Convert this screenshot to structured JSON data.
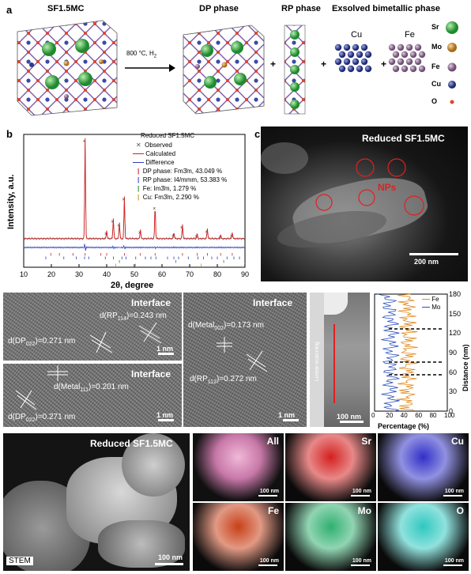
{
  "panel_a": {
    "label": "a",
    "sf_title": "SF1.5MC",
    "arrow_text": "800 °C, H",
    "arrow_sub": "2",
    "dp_title": "DP phase",
    "rp_title": "RP phase",
    "exsolved_title": "Exsolved bimetallic phase",
    "cu_label": "Cu",
    "fe_label": "Fe",
    "plus": "+",
    "legend": [
      {
        "label": "Sr",
        "color": "#39b54a"
      },
      {
        "label": "Mo",
        "color": "#c8882a"
      },
      {
        "label": "Fe",
        "color": "#8b6e8e"
      },
      {
        "label": "Cu",
        "color": "#2e3a8c"
      },
      {
        "label": "O",
        "color": "#e0452b"
      }
    ]
  },
  "panel_b": {
    "label": "b",
    "legend_title": "Reduced SF1.5MC",
    "legend_observed": "Observed",
    "legend_calculated": "Calculated",
    "legend_difference": "Difference",
    "legend_dp": "DP phase: Fm3̄m, 43.049 %",
    "legend_rp": "RP phase: I4/mmm, 53.383 %",
    "legend_fe": "Fe: Im3̄m, 1.279 %",
    "legend_cu": "Cu: Fm3̄m, 2.290 %"
  },
  "chart_data": {
    "type": "line",
    "xlabel": "2θ, degree",
    "ylabel": "Intensity, a.u.",
    "xlim": [
      10,
      90
    ],
    "xticks": [
      "10",
      "20",
      "30",
      "40",
      "50",
      "60",
      "70",
      "80",
      "90"
    ],
    "peaks": [
      {
        "x": 32.2,
        "y": 100
      },
      {
        "x": 40.0,
        "y": 8
      },
      {
        "x": 42.4,
        "y": 20
      },
      {
        "x": 44.6,
        "y": 16
      },
      {
        "x": 46.4,
        "y": 42
      },
      {
        "x": 52.2,
        "y": 9
      },
      {
        "x": 57.5,
        "y": 33
      },
      {
        "x": 64.3,
        "y": 6
      },
      {
        "x": 67.4,
        "y": 14
      },
      {
        "x": 72.7,
        "y": 5
      },
      {
        "x": 76.4,
        "y": 10
      },
      {
        "x": 81.2,
        "y": 4
      },
      {
        "x": 85.4,
        "y": 6
      }
    ],
    "colors": {
      "observed": "#444444",
      "calculated": "#d32020",
      "difference": "#2b3fbf"
    },
    "tick_series": [
      {
        "name": "DP phase: Fm3̄m, 43.049 %",
        "color": "#d32020",
        "x": [
          19.8,
          22.9,
          27.8,
          32.2,
          37.9,
          40.0,
          46.4,
          52.2,
          57.5,
          67.4,
          72.7,
          76.4,
          81.2,
          85.4
        ]
      },
      {
        "name": "RP phase: I4/mmm, 53.383 %",
        "color": "#2b3fbf",
        "x": [
          18.0,
          24.5,
          29.0,
          32.0,
          33.5,
          39.5,
          42.4,
          45.5,
          47.0,
          50.5,
          54.0,
          56.0,
          57.8,
          62.0,
          64.3,
          66.0,
          69.5,
          73.0,
          75.0,
          78.0,
          80.0,
          83.5,
          86.0,
          88.0
        ]
      },
      {
        "name": "Fe: Im3̄m, 1.279 %",
        "color": "#1f8a2e",
        "x": [
          44.6,
          65.0,
          82.3
        ]
      },
      {
        "name": "Cu: Fm3̄m, 2.290 %",
        "color": "#c89a1a",
        "x": [
          43.3,
          50.4,
          74.1,
          89.9
        ]
      }
    ]
  },
  "panel_c": {
    "label": "c",
    "title": "Reduced SF1.5MC",
    "nps": "NPs",
    "scale": "200 nm"
  },
  "panel_d": {
    "label": "d",
    "title": "Interface",
    "rp": "d(RP",
    "rp_sub": "114",
    "rp_val": ")=0.243 nm",
    "dp": "d(DP",
    "dp_sub": "022",
    "dp_val": ")=0.271 nm",
    "scale": "1 nm"
  },
  "panel_e": {
    "label": "e",
    "title": "Interface",
    "metal": "d(Metal",
    "metal_sub": "111",
    "metal_val": ")=0.201 nm",
    "dp": "d(DP",
    "dp_sub": "022",
    "dp_val": ")=0.271 nm",
    "scale": "1 nm"
  },
  "panel_f": {
    "label": "f",
    "title": "Interface",
    "metal": "d(Metal",
    "metal_sub": "002",
    "metal_val": ")=0.173 nm",
    "rp": "d(RP",
    "rp_sub": "112",
    "rp_val": ")=0.272 nm",
    "scale": "1 nm"
  },
  "panel_g": {
    "label": "g",
    "linear": "Linear-scanning",
    "scale": "100 nm",
    "xlabel": "Percentage (%)",
    "ylabel": "Distance (nm)",
    "xticks": [
      "0",
      "20",
      "40",
      "60",
      "80",
      "100"
    ],
    "yticks": [
      "0",
      "30",
      "60",
      "90",
      "120",
      "150",
      "180"
    ],
    "legend_fe": "Fe",
    "legend_mo": "Mo",
    "fe_color": "#e08a1e",
    "mo_color": "#2b4fbf"
  },
  "panel_h": {
    "label": "h",
    "title": "Reduced SF1.5MC",
    "stem": "STEM",
    "scale": "100 nm",
    "maps": [
      {
        "name": "All",
        "scale": "100 nm",
        "color": "#e8a0c8"
      },
      {
        "name": "Sr",
        "scale": "100 nm",
        "color": "#d42020"
      },
      {
        "name": "Cu",
        "scale": "100 nm",
        "color": "#3030c8"
      },
      {
        "name": "Fe",
        "scale": "100 nm",
        "color": "#c84018"
      },
      {
        "name": "Mo",
        "scale": "100 nm",
        "color": "#30b070"
      },
      {
        "name": "O",
        "scale": "100 nm",
        "color": "#30c8c0"
      }
    ]
  }
}
